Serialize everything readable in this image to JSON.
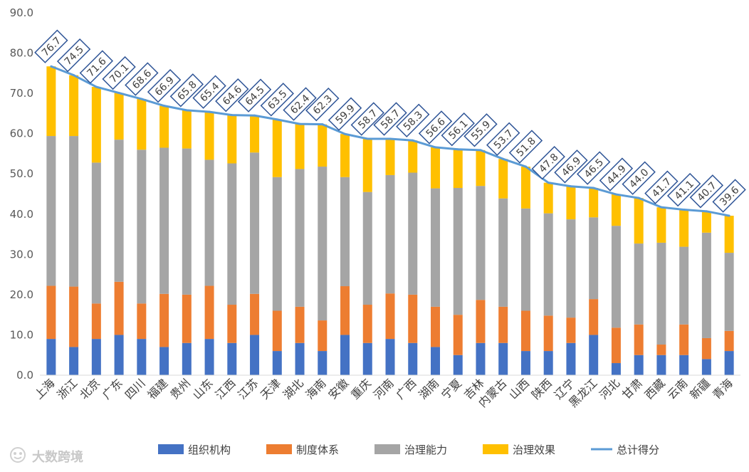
{
  "chart_data": {
    "type": "bar",
    "stacked": true,
    "categories": [
      "上海",
      "浙江",
      "北京",
      "广东",
      "四川",
      "福建",
      "贵州",
      "山东",
      "江西",
      "江苏",
      "天津",
      "湖北",
      "海南",
      "安徽",
      "重庆",
      "河南",
      "广西",
      "湖南",
      "宁夏",
      "吉林",
      "内蒙古",
      "山西",
      "陕西",
      "辽宁",
      "黑龙江",
      "河北",
      "甘肃",
      "西藏",
      "云南",
      "新疆",
      "青海"
    ],
    "series": [
      {
        "name": "组织机构",
        "color": "#4472C4",
        "values": [
          9,
          7,
          9,
          10,
          9,
          7,
          8,
          9,
          8,
          10,
          6,
          8,
          6,
          10,
          8,
          9,
          8,
          7,
          5,
          8,
          8,
          6,
          6,
          8,
          10,
          3,
          5,
          5,
          5,
          4,
          6
        ]
      },
      {
        "name": "制度体系",
        "color": "#ED7D31",
        "values": [
          13.2,
          15,
          8.8,
          13.2,
          8.8,
          13.2,
          12,
          13.2,
          9.5,
          10.2,
          10,
          9,
          7.6,
          12.1,
          9.5,
          11.3,
          12,
          10,
          10,
          10.7,
          9,
          10,
          8.8,
          6.3,
          8.9,
          8.8,
          7.6,
          2.6,
          7.6,
          5.2,
          5
        ]
      },
      {
        "name": "治理能力",
        "color": "#A5A5A5",
        "values": [
          37.2,
          37.4,
          35,
          35.3,
          38.2,
          36.3,
          36.3,
          31.3,
          35.1,
          35.1,
          33.2,
          34.2,
          38.2,
          27.1,
          28,
          29.4,
          30.3,
          29.4,
          31.5,
          28.3,
          26.9,
          25.4,
          25.4,
          24.4,
          20.3,
          25.3,
          20.1,
          25.3,
          19.3,
          26.2,
          19.4
        ]
      },
      {
        "name": "治理效果",
        "color": "#FFC000",
        "values": [
          17.3,
          15.1,
          18.8,
          11.6,
          12.6,
          10.4,
          9.5,
          11.9,
          12,
          9.2,
          14.3,
          11.2,
          10.5,
          10.7,
          13.2,
          9,
          8,
          10.2,
          9.6,
          8.9,
          9.8,
          10.4,
          7.6,
          8.2,
          7.3,
          7.8,
          11.3,
          8.8,
          9.2,
          5.3,
          9.2
        ]
      },
      {
        "name": "总计得分",
        "color": "#5B9BD5",
        "type": "line",
        "values": [
          76.7,
          74.5,
          71.6,
          70.1,
          68.6,
          66.9,
          65.8,
          65.4,
          64.6,
          64.5,
          63.5,
          62.4,
          62.3,
          59.9,
          58.7,
          58.7,
          58.3,
          56.6,
          56.1,
          55.9,
          53.7,
          51.8,
          47.8,
          46.9,
          46.5,
          44.9,
          44.0,
          41.7,
          41.1,
          40.7,
          39.6
        ],
        "labels": [
          "76.7",
          "74.5",
          "71.6",
          "70.1",
          "68.6",
          "66.9",
          "65.8",
          "65.4",
          "64.6",
          "64.5",
          "63.5",
          "62.4",
          "62.3",
          "59.9",
          "58.7",
          "58.7",
          "58.3",
          "56.6",
          "56.1",
          "55.9",
          "53.7",
          "51.8",
          "47.8",
          "46.9",
          "46.5",
          "44.9",
          "44.0",
          "41.7",
          "41.1",
          "40.7",
          "39.6"
        ]
      }
    ],
    "y_ticks": [
      "0.0",
      "10.0",
      "20.0",
      "30.0",
      "40.0",
      "50.0",
      "60.0",
      "70.0",
      "80.0",
      "90.0"
    ],
    "ylim": [
      0,
      90
    ],
    "grid": false,
    "legend": "bottom"
  },
  "watermark": "大数跨境"
}
